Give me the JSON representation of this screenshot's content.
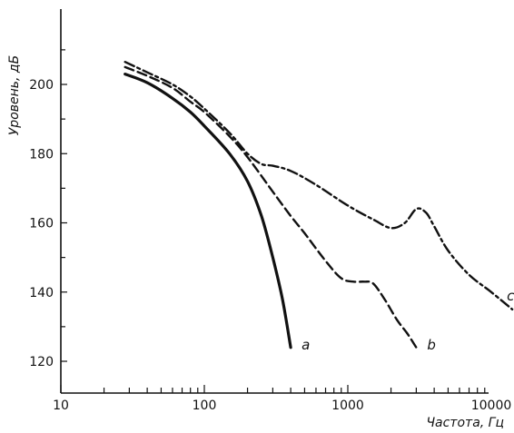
{
  "chart_data": {
    "type": "line",
    "title": "",
    "xlabel": "Частота, Гц",
    "ylabel": "Уровень, дБ",
    "x_scale": "log",
    "xlim": [
      10,
      15000
    ],
    "ylim": [
      115,
      222
    ],
    "x_ticks": [
      10,
      100,
      1000,
      10000
    ],
    "x_tick_labels": [
      "10",
      "100",
      "1000",
      "10000"
    ],
    "y_ticks": [
      120,
      140,
      160,
      180,
      200
    ],
    "y_tick_labels": [
      "120",
      "140",
      "160",
      "180",
      "200"
    ],
    "grid": false,
    "legend": "none",
    "series": [
      {
        "name": "a",
        "style": "solid",
        "x": [
          28,
          40,
          60,
          80,
          100,
          150,
          200,
          250,
          300,
          350,
          400
        ],
        "y": [
          203,
          200.5,
          196,
          192,
          188,
          180,
          172,
          162,
          150,
          138,
          124
        ]
      },
      {
        "name": "b",
        "style": "dashed",
        "x": [
          28,
          40,
          60,
          80,
          100,
          150,
          200,
          300,
          400,
          500,
          700,
          900,
          1100,
          1300,
          1500,
          1800,
          2200,
          2600,
          3000
        ],
        "y": [
          205,
          202.5,
          199,
          195,
          192,
          185,
          179,
          169,
          162,
          157,
          149,
          144,
          143,
          143,
          142.5,
          138,
          132,
          128,
          124
        ]
      },
      {
        "name": "c",
        "style": "dashdot",
        "x": [
          28,
          40,
          60,
          80,
          100,
          150,
          200,
          250,
          300,
          400,
          600,
          1000,
          1500,
          2000,
          2500,
          3000,
          3500,
          4000,
          5000,
          7000,
          10000,
          14000
        ],
        "y": [
          206.5,
          203.5,
          200,
          196.5,
          193,
          186,
          180,
          177,
          176.5,
          175,
          171,
          165,
          161,
          158.5,
          160,
          164,
          163,
          159,
          152,
          145,
          140,
          135
        ]
      }
    ]
  }
}
